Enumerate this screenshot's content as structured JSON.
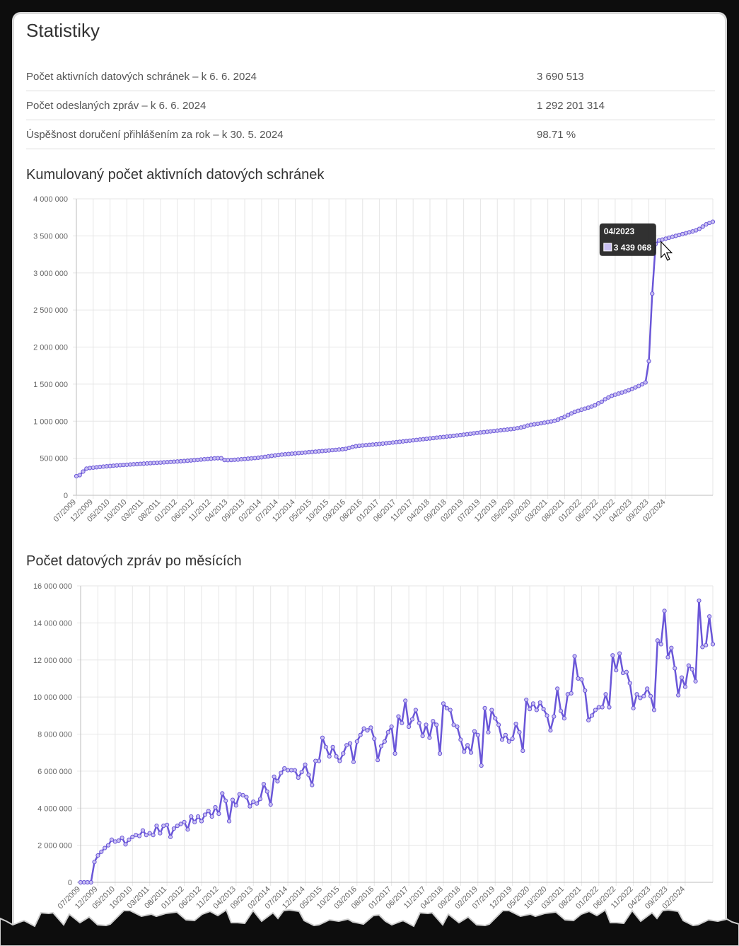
{
  "page": {
    "title": "Statistiky",
    "accent_color": "#6a56d8"
  },
  "stats": [
    {
      "label": "Počet aktivních datových schránek – k 6. 6. 2024",
      "value": "3 690 513"
    },
    {
      "label": "Počet odeslaných zpráv – k 6. 6. 2024",
      "value": "1 292 201 314"
    },
    {
      "label": "Úspěšnost doručení přihlášením za rok – k 30. 5. 2024",
      "value": "98.71 %"
    }
  ],
  "tooltip": {
    "label": "04/2023",
    "value": "3 439 068"
  },
  "chart_data": [
    {
      "type": "line",
      "title": "Kumulovaný počet aktivních datových schránek",
      "x_start": "07/2009",
      "x_tick_labels": [
        "07/2009",
        "12/2009",
        "05/2010",
        "10/2010",
        "03/2011",
        "08/2011",
        "01/2012",
        "06/2012",
        "11/2012",
        "04/2013",
        "09/2013",
        "02/2014",
        "07/2014",
        "12/2014",
        "05/2015",
        "10/2015",
        "03/2016",
        "08/2016",
        "01/2017",
        "06/2017",
        "11/2017",
        "04/2018",
        "09/2018",
        "02/2019",
        "07/2019",
        "12/2019",
        "05/2020",
        "10/2020",
        "03/2021",
        "08/2021",
        "01/2022",
        "06/2022",
        "11/2022",
        "04/2023",
        "09/2023",
        "02/2024"
      ],
      "y_tick_labels": [
        "0",
        "500 000",
        "1 000 000",
        "1 500 000",
        "2 000 000",
        "2 500 000",
        "3 000 000",
        "3 500 000",
        "4 000 000"
      ],
      "ylim": [
        0,
        4000000
      ],
      "grid": true,
      "values": [
        258000,
        272000,
        320000,
        360000,
        368000,
        373000,
        378000,
        383000,
        387000,
        391000,
        395000,
        399000,
        403000,
        406000,
        409000,
        412000,
        415000,
        418000,
        421000,
        424000,
        427000,
        430000,
        433000,
        436000,
        438000,
        441000,
        444000,
        447000,
        450000,
        453000,
        456000,
        459000,
        462000,
        466000,
        470000,
        474000,
        478000,
        482000,
        486000,
        490000,
        494000,
        498000,
        500000,
        500000,
        476000,
        474000,
        476000,
        479000,
        482000,
        486000,
        490000,
        494000,
        498000,
        502000,
        507000,
        512000,
        518000,
        525000,
        532000,
        538000,
        544000,
        549000,
        553000,
        557000,
        561000,
        565000,
        569000,
        573000,
        577000,
        581000,
        585000,
        589000,
        593000,
        597000,
        601000,
        605000,
        609000,
        613000,
        617000,
        621000,
        627000,
        640000,
        652000,
        662000,
        668000,
        672000,
        676000,
        680000,
        684000,
        688000,
        692000,
        697000,
        702000,
        707000,
        712000,
        717000,
        722000,
        727000,
        732000,
        737000,
        742000,
        747000,
        752000,
        757000,
        762000,
        767000,
        772000,
        777000,
        782000,
        787000,
        792000,
        797000,
        802000,
        807000,
        812000,
        818000,
        824000,
        830000,
        836000,
        842000,
        847000,
        852000,
        857000,
        862000,
        867000,
        872000,
        877000,
        882000,
        887000,
        892000,
        898000,
        905000,
        914000,
        925000,
        940000,
        950000,
        958000,
        965000,
        972000,
        980000,
        988000,
        996000,
        1005000,
        1020000,
        1040000,
        1060000,
        1082000,
        1104000,
        1125000,
        1140000,
        1155000,
        1168000,
        1182000,
        1197000,
        1215000,
        1240000,
        1262000,
        1295000,
        1320000,
        1342000,
        1358000,
        1372000,
        1386000,
        1400000,
        1417000,
        1435000,
        1455000,
        1475000,
        1497000,
        1522000,
        1810000,
        2720000,
        3390000,
        3439068,
        3450000,
        3462000,
        3475000,
        3488000,
        3500000,
        3512000,
        3524000,
        3536000,
        3548000,
        3560000,
        3575000,
        3595000,
        3625000,
        3655000,
        3675000,
        3690513
      ]
    },
    {
      "type": "line",
      "title": "Počet datových zpráv po měsících",
      "x_start": "07/2009",
      "x_tick_labels": [
        "07/2009",
        "12/2009",
        "05/2010",
        "10/2010",
        "03/2011",
        "08/2011",
        "01/2012",
        "06/2012",
        "11/2012",
        "04/2013",
        "09/2013",
        "02/2014",
        "07/2014",
        "12/2014",
        "05/2015",
        "10/2015",
        "03/2016",
        "08/2016",
        "01/2017",
        "06/2017",
        "11/2017",
        "04/2018",
        "09/2018",
        "02/2019",
        "07/2019",
        "12/2019",
        "05/2020",
        "10/2020",
        "03/2021",
        "08/2021",
        "01/2022",
        "06/2022",
        "11/2022",
        "04/2023",
        "09/2023",
        "02/2024"
      ],
      "y_tick_labels": [
        "0",
        "2 000 000",
        "4 000 000",
        "6 000 000",
        "8 000 000",
        "10 000 000",
        "12 000 000",
        "14 000 000",
        "16 000 000"
      ],
      "ylim": [
        0,
        16000000
      ],
      "grid": true,
      "values": [
        0,
        0,
        0,
        0,
        1100000,
        1450000,
        1650000,
        1850000,
        2000000,
        2300000,
        2200000,
        2250000,
        2400000,
        2050000,
        2300000,
        2450000,
        2550000,
        2500000,
        2800000,
        2550000,
        2650000,
        2550000,
        3050000,
        2650000,
        3050000,
        3100000,
        2450000,
        2900000,
        3050000,
        3150000,
        3250000,
        2850000,
        3550000,
        3250000,
        3550000,
        3300000,
        3650000,
        3850000,
        3550000,
        4050000,
        3700000,
        4800000,
        4400000,
        3300000,
        4450000,
        4150000,
        4750000,
        4700000,
        4600000,
        4100000,
        4350000,
        4250000,
        4500000,
        5300000,
        4900000,
        4200000,
        5700000,
        5450000,
        5900000,
        6150000,
        6050000,
        6050000,
        6050000,
        5650000,
        5950000,
        6350000,
        5800000,
        5250000,
        6550000,
        6550000,
        7800000,
        7300000,
        6800000,
        7300000,
        6800000,
        6550000,
        6950000,
        7400000,
        7500000,
        6500000,
        7600000,
        7950000,
        8300000,
        8200000,
        8350000,
        7750000,
        6600000,
        7350000,
        7600000,
        8100000,
        8400000,
        6950000,
        8950000,
        8600000,
        9800000,
        8400000,
        8800000,
        9300000,
        8600000,
        7900000,
        8500000,
        7800000,
        8700000,
        8500000,
        6950000,
        9650000,
        9400000,
        9300000,
        8500000,
        8400000,
        7700000,
        7050000,
        7400000,
        7000000,
        8150000,
        7950000,
        6300000,
        9400000,
        8100000,
        9300000,
        8850000,
        8500000,
        7700000,
        7950000,
        7600000,
        7750000,
        8550000,
        8100000,
        7100000,
        9850000,
        9350000,
        9650000,
        9300000,
        9700000,
        9350000,
        9000000,
        8200000,
        8950000,
        10450000,
        9250000,
        8850000,
        10150000,
        10200000,
        12200000,
        11000000,
        10950000,
        10350000,
        8750000,
        9000000,
        9300000,
        9450000,
        9450000,
        10150000,
        9450000,
        12250000,
        11450000,
        12350000,
        11300000,
        11350000,
        10750000,
        9400000,
        10150000,
        9950000,
        10050000,
        10450000,
        10050000,
        9300000,
        13050000,
        12850000,
        14650000,
        12150000,
        12650000,
        11550000,
        10100000,
        11050000,
        10550000,
        11700000,
        11500000,
        10850000,
        15200000,
        12700000,
        12800000,
        14350000,
        12850000
      ]
    }
  ]
}
